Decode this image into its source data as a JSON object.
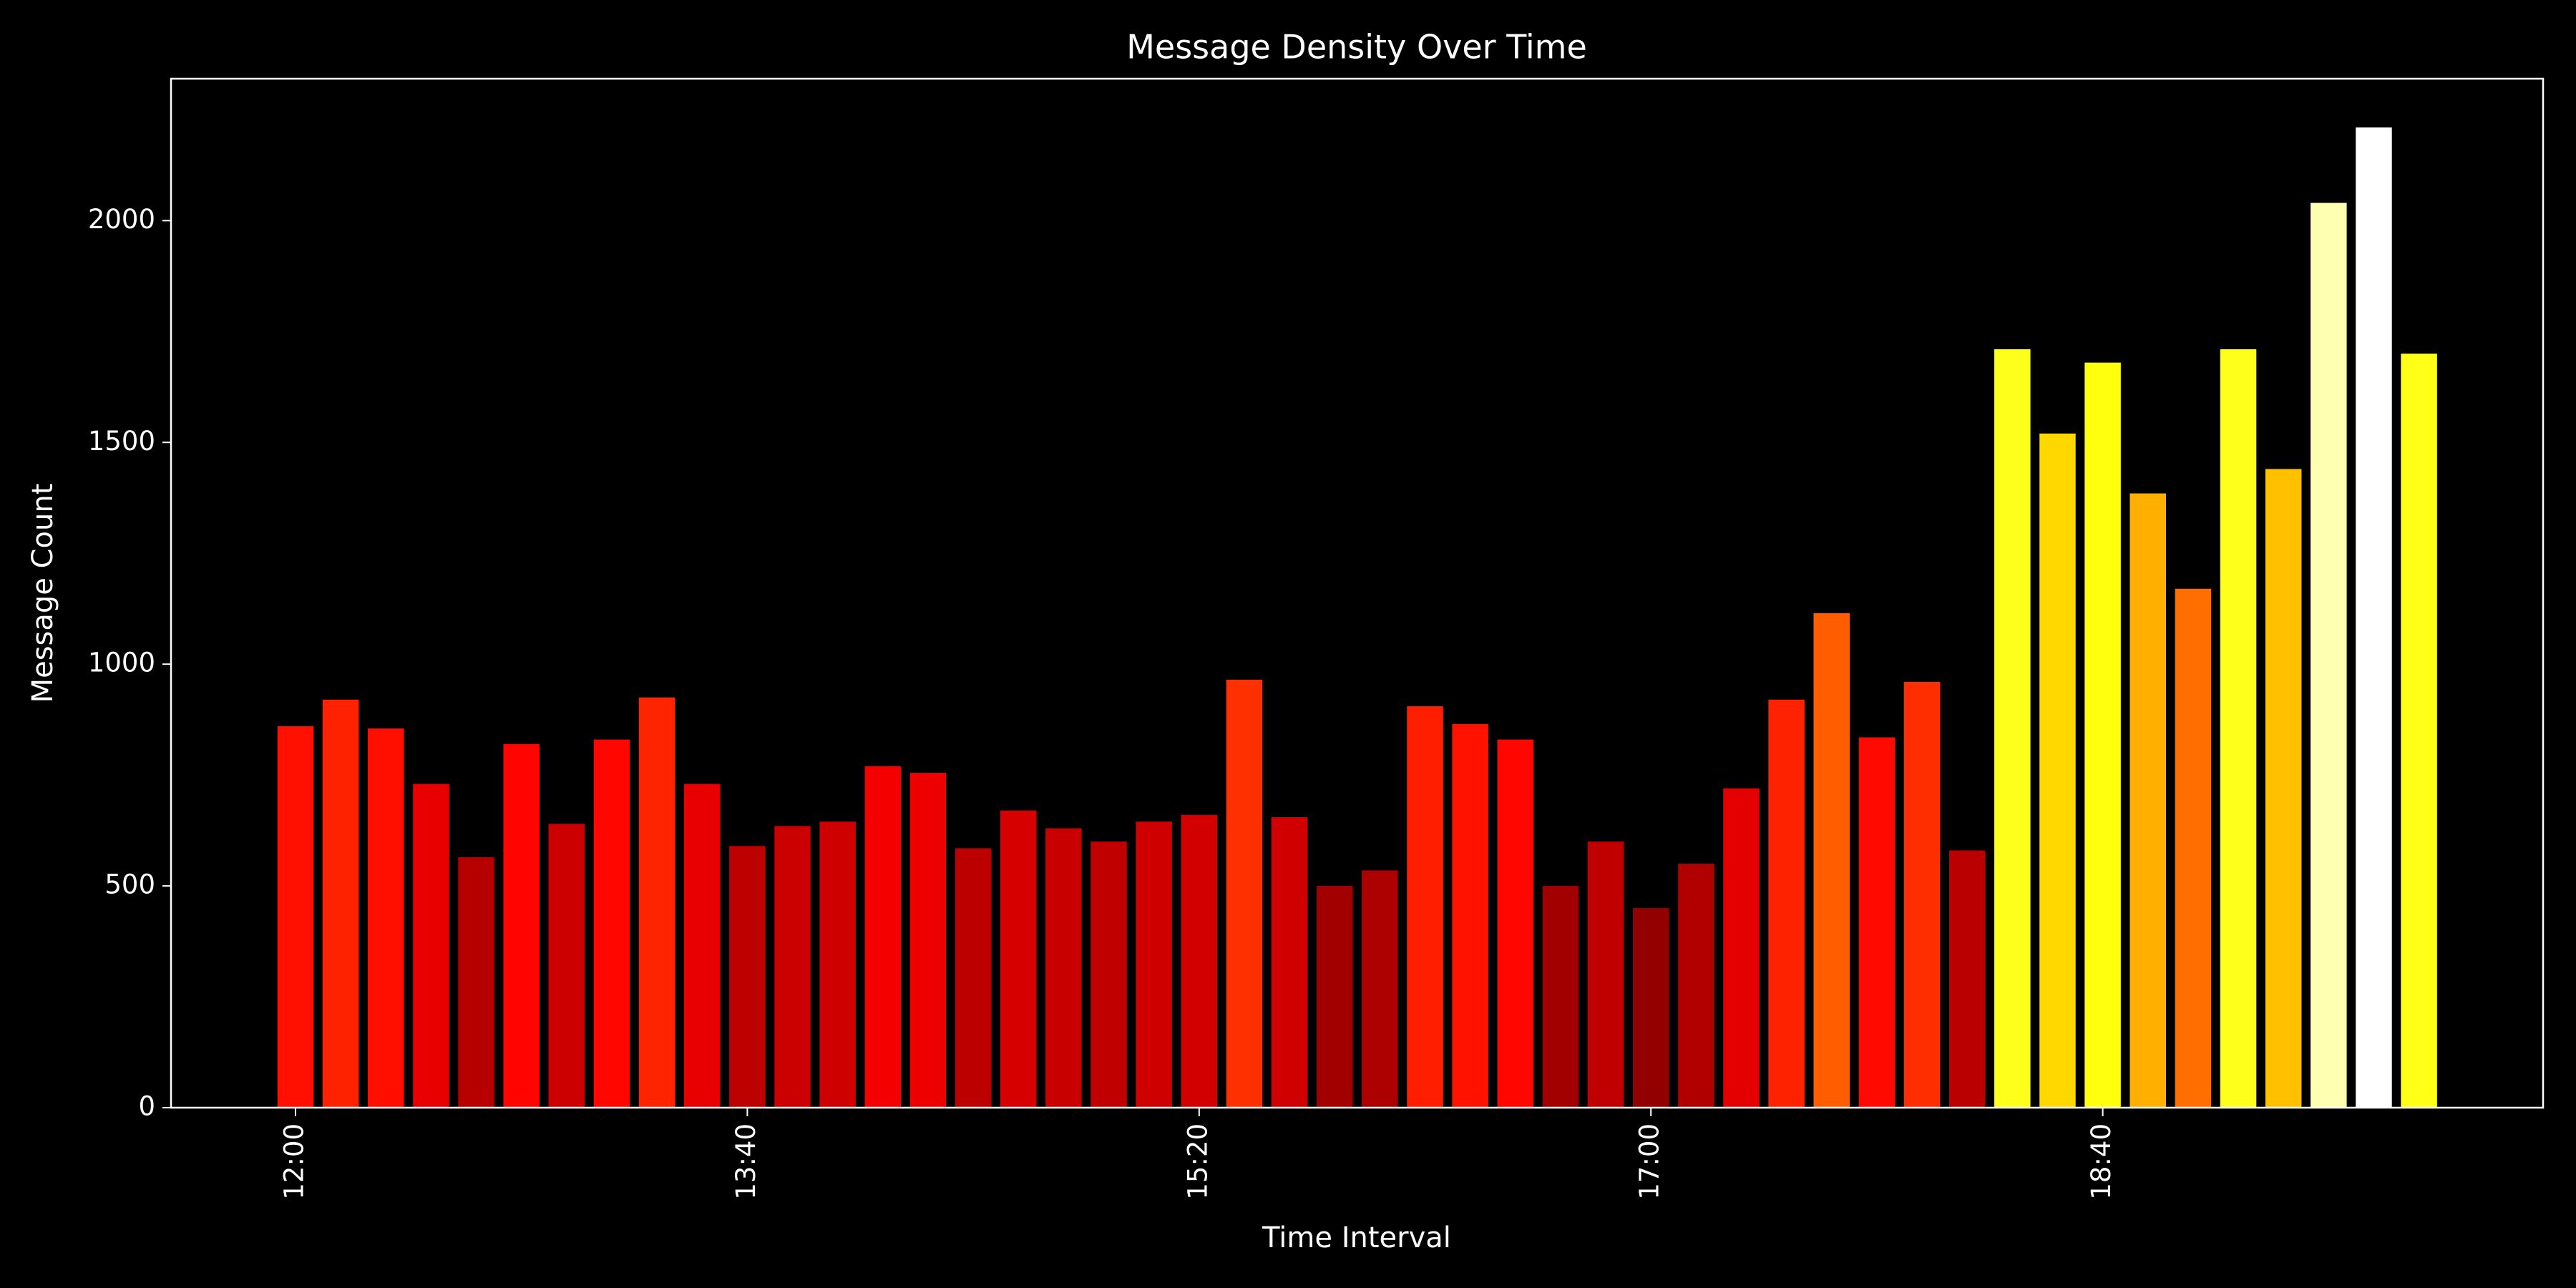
{
  "chart_data": {
    "type": "bar",
    "title": "Message Density Over Time",
    "x_label": "Time Interval",
    "y_label": "Message Count",
    "categories": [
      "12:00",
      null,
      null,
      null,
      null,
      null,
      null,
      null,
      null,
      null,
      "13:40",
      null,
      null,
      null,
      null,
      null,
      null,
      null,
      null,
      null,
      "15:20",
      null,
      null,
      null,
      null,
      null,
      null,
      null,
      null,
      null,
      "17:00",
      null,
      null,
      null,
      null,
      null,
      null,
      null,
      null,
      null,
      "18:40",
      null,
      null,
      null,
      null,
      null,
      null,
      null
    ],
    "values": [
      860,
      920,
      855,
      730,
      565,
      820,
      640,
      830,
      925,
      730,
      590,
      635,
      645,
      770,
      755,
      585,
      670,
      630,
      600,
      645,
      660,
      965,
      655,
      500,
      535,
      905,
      865,
      830,
      500,
      600,
      450,
      550,
      720,
      920,
      1115,
      835,
      960,
      580,
      1710,
      1520,
      1680,
      1385,
      1170,
      1710,
      1440,
      2040,
      2210,
      1700
    ],
    "colormap": "hot",
    "ylim": [
      0,
      2320
    ],
    "yticks": [
      0,
      500,
      1000,
      1500,
      2000
    ],
    "grid": false,
    "background": "#000000",
    "foreground": "#ffffff"
  }
}
